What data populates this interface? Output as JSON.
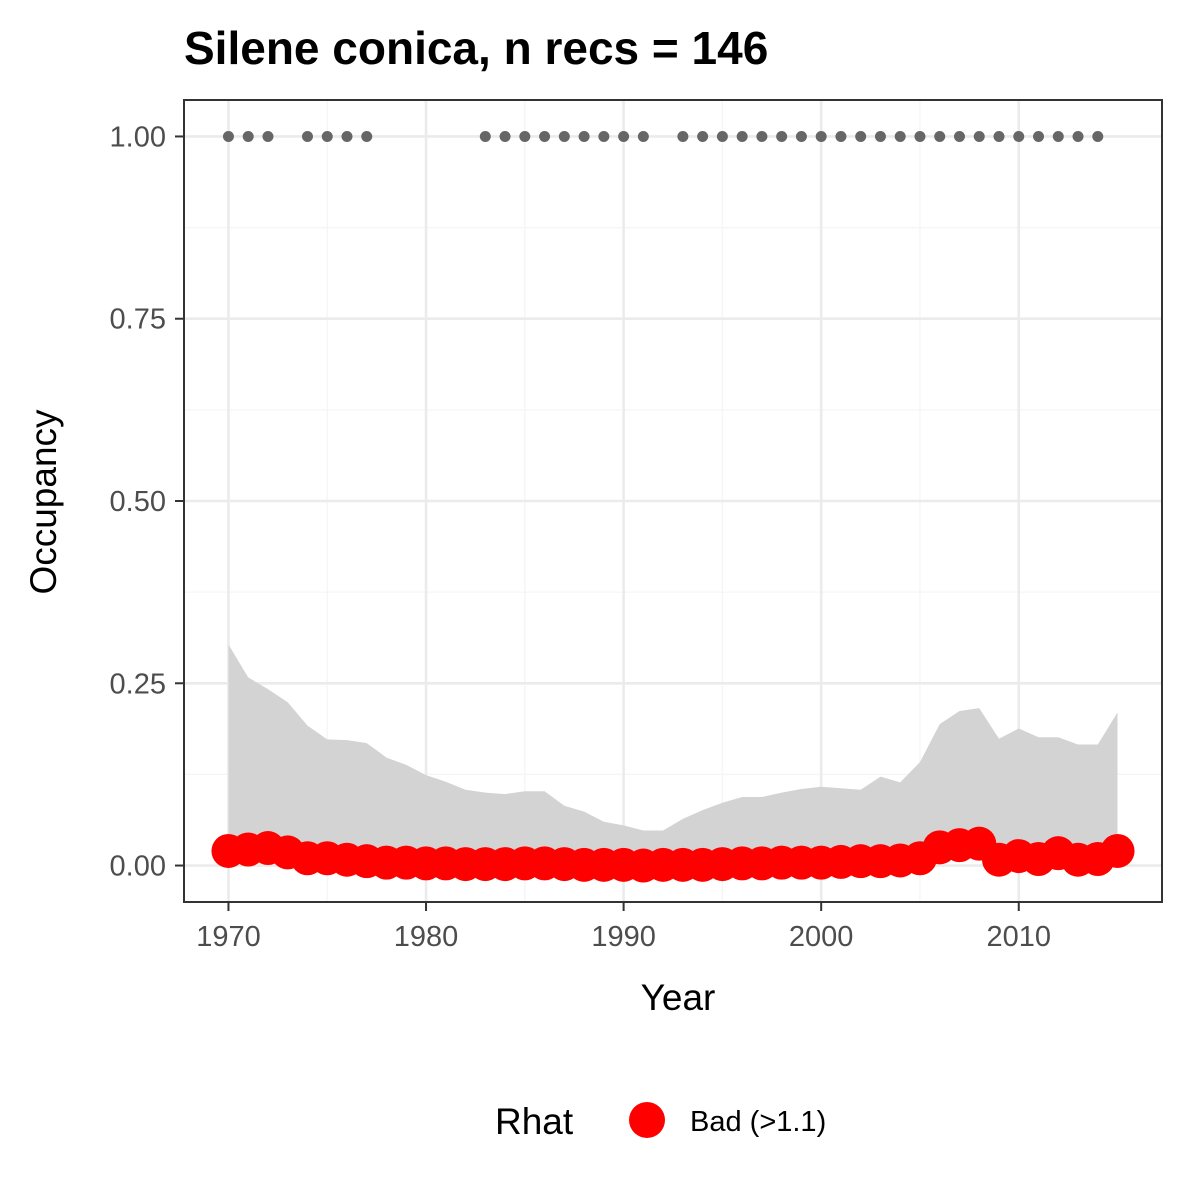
{
  "colors": {
    "panel_border": "#333333",
    "grid_major": "#ebebeb",
    "grid_minor": "#f5f5f5",
    "ribbon": "#d3d3d3",
    "record_dots": "#666666",
    "rhat_bad": "#ff0000",
    "tick_text": "#4d4d4d"
  },
  "chart_data": {
    "type": "line",
    "title": "Silene conica, n recs = 146",
    "xlabel": "Year",
    "ylabel": "Occupancy",
    "xlim": [
      1967.75,
      2017.25
    ],
    "ylim": [
      -0.05,
      1.05
    ],
    "x_ticks": [
      1970,
      1980,
      1990,
      2000,
      2010
    ],
    "x_tick_labels": [
      "1970",
      "1980",
      "1990",
      "2000",
      "2010"
    ],
    "y_ticks": [
      0.0,
      0.25,
      0.5,
      0.75,
      1.0
    ],
    "y_tick_labels": [
      "0.00",
      "0.25",
      "0.50",
      "0.75",
      "1.00"
    ],
    "grid": true,
    "legend": {
      "title": "Rhat",
      "position": "bottom",
      "items": [
        {
          "label": "Bad (>1.1)",
          "color": "#ff0000"
        }
      ]
    },
    "series": [
      {
        "kind": "ribbon",
        "x": [
          1970,
          1971,
          1972,
          1973,
          1974,
          1975,
          1976,
          1977,
          1978,
          1979,
          1980,
          1981,
          1982,
          1983,
          1984,
          1985,
          1986,
          1987,
          1988,
          1989,
          1990,
          1991,
          1992,
          1993,
          1994,
          1995,
          1996,
          1997,
          1998,
          1999,
          2000,
          2001,
          2002,
          2003,
          2004,
          2005,
          2006,
          2007,
          2008,
          2009,
          2010,
          2011,
          2012,
          2013,
          2014,
          2015
        ],
        "lower": [
          0.01,
          0.01,
          0.01,
          0.005,
          0.003,
          0.003,
          0.002,
          0.002,
          0.002,
          0.002,
          0.002,
          0.002,
          0.002,
          0.002,
          0.002,
          0.002,
          0.002,
          0.002,
          0.002,
          0.002,
          0.002,
          0.002,
          0.002,
          0.002,
          0.002,
          0.002,
          0.002,
          0.002,
          0.002,
          0.002,
          0.002,
          0.002,
          0.002,
          0.002,
          0.002,
          0.003,
          0.008,
          0.01,
          0.01,
          0.003,
          0.005,
          0.004,
          0.006,
          0.003,
          0.003,
          0.008
        ],
        "upper": [
          0.303,
          0.258,
          0.242,
          0.224,
          0.192,
          0.173,
          0.172,
          0.168,
          0.148,
          0.138,
          0.124,
          0.115,
          0.104,
          0.1,
          0.098,
          0.102,
          0.102,
          0.082,
          0.074,
          0.06,
          0.055,
          0.048,
          0.048,
          0.064,
          0.076,
          0.086,
          0.094,
          0.094,
          0.1,
          0.105,
          0.108,
          0.106,
          0.104,
          0.122,
          0.114,
          0.142,
          0.194,
          0.212,
          0.216,
          0.174,
          0.188,
          0.176,
          0.176,
          0.166,
          0.166,
          0.21
        ]
      },
      {
        "kind": "points",
        "name": "Bad (>1.1)",
        "x": [
          1970,
          1971,
          1972,
          1973,
          1974,
          1975,
          1976,
          1977,
          1978,
          1979,
          1980,
          1981,
          1982,
          1983,
          1984,
          1985,
          1986,
          1987,
          1988,
          1989,
          1990,
          1991,
          1992,
          1993,
          1994,
          1995,
          1996,
          1997,
          1998,
          1999,
          2000,
          2001,
          2002,
          2003,
          2004,
          2005,
          2006,
          2007,
          2008,
          2009,
          2010,
          2011,
          2012,
          2013,
          2014,
          2015
        ],
        "y": [
          0.02,
          0.022,
          0.024,
          0.018,
          0.01,
          0.01,
          0.008,
          0.006,
          0.004,
          0.004,
          0.003,
          0.003,
          0.002,
          0.002,
          0.002,
          0.003,
          0.003,
          0.002,
          0.001,
          0.001,
          0.001,
          0.0,
          0.001,
          0.001,
          0.001,
          0.002,
          0.003,
          0.003,
          0.004,
          0.004,
          0.004,
          0.005,
          0.006,
          0.006,
          0.007,
          0.01,
          0.025,
          0.028,
          0.03,
          0.008,
          0.013,
          0.009,
          0.017,
          0.008,
          0.009,
          0.02
        ]
      },
      {
        "kind": "records",
        "x": [
          1970,
          1971,
          1972,
          1974,
          1975,
          1976,
          1977,
          1983,
          1984,
          1985,
          1986,
          1987,
          1988,
          1989,
          1990,
          1991,
          1993,
          1994,
          1995,
          1996,
          1997,
          1998,
          1999,
          2000,
          2001,
          2002,
          2003,
          2004,
          2005,
          2006,
          2007,
          2008,
          2009,
          2010,
          2011,
          2012,
          2013,
          2014
        ],
        "y": 1.0
      }
    ]
  }
}
